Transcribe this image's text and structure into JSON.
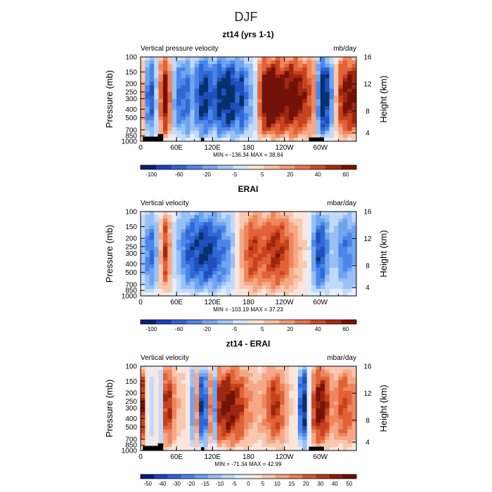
{
  "figure": {
    "title": "DJF"
  },
  "chart_data": [
    {
      "type": "heatmap",
      "title": "zt14 (yrs 1-1)",
      "left_string": "Vertical pressure velocity",
      "right_string": "mb/day",
      "ylabel": "Pressure (mb)",
      "ylabel_right": "Height (km)",
      "x_ticks": [
        "0",
        "60E",
        "120E",
        "180",
        "120W",
        "60W"
      ],
      "y_ticks": [
        "100",
        "150",
        "200",
        "250",
        "300",
        "400",
        "500",
        "700",
        "850",
        "1000"
      ],
      "y_ticks_right": [
        "16",
        "12",
        "8",
        "4"
      ],
      "stats": "MIN = -136.34   MAX =  38.84",
      "colorbar_labels": [
        "-100",
        "-60",
        "-20",
        "-5",
        "5",
        "20",
        "40",
        "60"
      ],
      "xlim": [
        0,
        360
      ],
      "ylim": [
        1000,
        100
      ],
      "y_scale": "log",
      "profile": [
        0.9,
        -0.3,
        -0.9,
        -0.6,
        0.2,
        1.1,
        0.9,
        -0.2,
        -0.7,
        -0.6,
        -0.8,
        -0.4,
        -0.6,
        -0.9,
        -1.0,
        -0.8,
        -0.7,
        -1.0,
        -0.9,
        -1.1,
        -1.0,
        -0.8,
        -0.9,
        -0.6,
        -0.4,
        -0.2,
        0.6,
        1.1,
        1.2,
        1.2,
        1.1,
        1.0,
        1.0,
        1.1,
        1.0,
        0.9,
        0.8,
        0.6,
        0.4,
        -1.0,
        -1.2,
        -0.8,
        -0.3,
        0.6,
        0.8,
        1.0,
        1.0,
        0.9
      ]
    },
    {
      "type": "heatmap",
      "title": "ERAI",
      "left_string": "Vertical velocity",
      "right_string": "mbar/day",
      "ylabel": "Pressure (mb)",
      "ylabel_right": "Height (km)",
      "x_ticks": [
        "0",
        "60E",
        "120E",
        "180",
        "120W",
        "60W"
      ],
      "y_ticks": [
        "100",
        "150",
        "200",
        "250",
        "300",
        "400",
        "500",
        "700",
        "850",
        "1000"
      ],
      "y_ticks_right": [
        "16",
        "12",
        "8",
        "4"
      ],
      "stats": "MIN = -103.19   MAX =  37.23",
      "colorbar_labels": [
        "-100",
        "-60",
        "-20",
        "-5",
        "5",
        "20",
        "40",
        "60"
      ],
      "xlim": [
        0,
        360
      ],
      "ylim": [
        1000,
        100
      ],
      "y_scale": "log",
      "profile": [
        -0.2,
        -0.4,
        -0.7,
        -0.6,
        -0.1,
        0.8,
        0.6,
        -0.1,
        -0.3,
        -0.5,
        -0.7,
        -0.8,
        -0.8,
        -0.9,
        -0.9,
        -0.9,
        -0.8,
        -0.7,
        -0.6,
        -0.5,
        -0.3,
        0.0,
        0.3,
        0.5,
        0.7,
        0.7,
        0.6,
        0.6,
        0.7,
        0.8,
        0.8,
        0.7,
        0.6,
        0.4,
        0.3,
        0.2,
        0.1,
        -0.2,
        -0.6,
        -0.9,
        -0.7,
        -0.4,
        -0.2,
        -0.4,
        -0.6,
        -0.6,
        -0.5,
        -0.4
      ]
    },
    {
      "type": "heatmap",
      "title": "zt14 - ERAI",
      "left_string": "Vertical velocity",
      "right_string": "mbar/day",
      "ylabel": "Pressure (mb)",
      "ylabel_right": "Height (km)",
      "x_ticks": [
        "0",
        "60E",
        "120E",
        "180",
        "120W",
        "60W"
      ],
      "y_ticks": [
        "100",
        "150",
        "200",
        "250",
        "300",
        "400",
        "500",
        "700",
        "850",
        "1000"
      ],
      "y_ticks_right": [
        "16",
        "12",
        "8",
        "4"
      ],
      "stats": "MIN = -71.34   MAX =  42.99",
      "colorbar_labels": [
        "-50",
        "-40",
        "-30",
        "-20",
        "-15",
        "-10",
        "-5",
        "0",
        "5",
        "10",
        "15",
        "20",
        "30",
        "40",
        "50"
      ],
      "xlim": [
        0,
        360
      ],
      "ylim": [
        1000,
        100
      ],
      "y_scale": "log",
      "profile": [
        0.9,
        0.8,
        -0.9,
        0.7,
        -0.8,
        0.6,
        0.9,
        0.5,
        0.3,
        0.1,
        0.4,
        -0.9,
        0.8,
        -0.8,
        -1.0,
        0.7,
        -0.7,
        0.8,
        0.9,
        1.0,
        0.9,
        0.8,
        0.7,
        0.5,
        0.4,
        0.3,
        0.3,
        0.4,
        0.6,
        0.8,
        0.7,
        0.5,
        0.3,
        0.1,
        0.0,
        -0.9,
        -1.0,
        0.3,
        0.8,
        1.0,
        0.9,
        0.6,
        0.3,
        0.5,
        0.7,
        0.6,
        0.5,
        0.4
      ]
    }
  ]
}
